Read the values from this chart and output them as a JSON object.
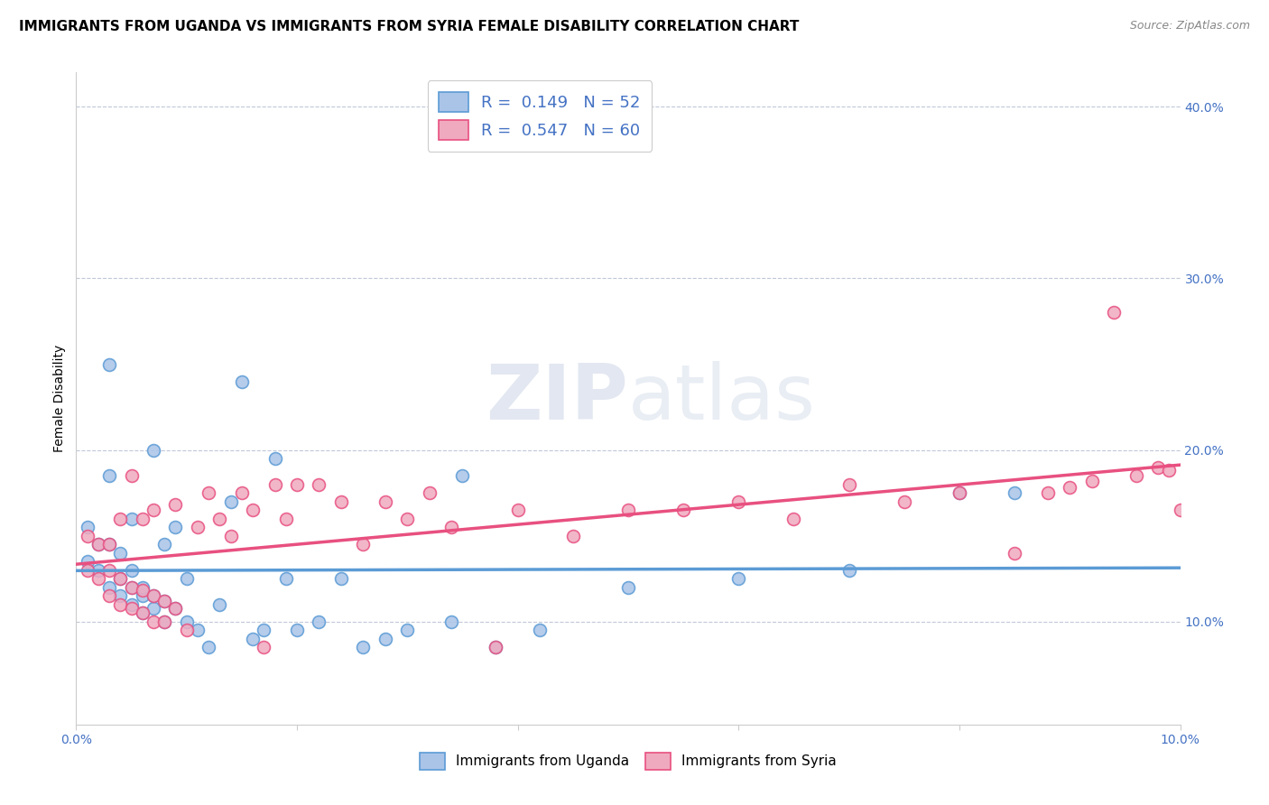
{
  "title": "IMMIGRANTS FROM UGANDA VS IMMIGRANTS FROM SYRIA FEMALE DISABILITY CORRELATION CHART",
  "source": "Source: ZipAtlas.com",
  "ylabel": "Female Disability",
  "xlim": [
    0.0,
    0.1
  ],
  "ylim": [
    0.04,
    0.42
  ],
  "yticks": [
    0.1,
    0.2,
    0.3,
    0.4
  ],
  "ytick_labels": [
    "10.0%",
    "20.0%",
    "30.0%",
    "40.0%"
  ],
  "xticks": [
    0.0,
    0.02,
    0.04,
    0.06,
    0.08,
    0.1
  ],
  "xtick_labels": [
    "0.0%",
    "",
    "",
    "",
    "",
    "10.0%"
  ],
  "legend_R1": "R =  0.149",
  "legend_N1": "N = 52",
  "legend_R2": "R =  0.547",
  "legend_N2": "N = 60",
  "color_uganda": "#aac4e8",
  "color_syria": "#f0aac0",
  "color_line_uganda": "#5b9bd5",
  "color_line_syria": "#e85080",
  "uganda_x": [
    0.001,
    0.001,
    0.002,
    0.002,
    0.003,
    0.003,
    0.003,
    0.003,
    0.004,
    0.004,
    0.004,
    0.005,
    0.005,
    0.005,
    0.005,
    0.006,
    0.006,
    0.006,
    0.007,
    0.007,
    0.007,
    0.008,
    0.008,
    0.008,
    0.009,
    0.009,
    0.01,
    0.01,
    0.011,
    0.012,
    0.013,
    0.014,
    0.015,
    0.016,
    0.017,
    0.018,
    0.019,
    0.02,
    0.022,
    0.024,
    0.026,
    0.028,
    0.03,
    0.034,
    0.035,
    0.038,
    0.042,
    0.05,
    0.06,
    0.07,
    0.08,
    0.085
  ],
  "uganda_y": [
    0.135,
    0.155,
    0.13,
    0.145,
    0.12,
    0.145,
    0.185,
    0.25,
    0.115,
    0.125,
    0.14,
    0.11,
    0.12,
    0.13,
    0.16,
    0.105,
    0.115,
    0.12,
    0.108,
    0.115,
    0.2,
    0.1,
    0.112,
    0.145,
    0.108,
    0.155,
    0.1,
    0.125,
    0.095,
    0.085,
    0.11,
    0.17,
    0.24,
    0.09,
    0.095,
    0.195,
    0.125,
    0.095,
    0.1,
    0.125,
    0.085,
    0.09,
    0.095,
    0.1,
    0.185,
    0.085,
    0.095,
    0.12,
    0.125,
    0.13,
    0.175,
    0.175
  ],
  "syria_x": [
    0.001,
    0.001,
    0.002,
    0.002,
    0.003,
    0.003,
    0.003,
    0.004,
    0.004,
    0.004,
    0.005,
    0.005,
    0.005,
    0.006,
    0.006,
    0.006,
    0.007,
    0.007,
    0.007,
    0.008,
    0.008,
    0.009,
    0.009,
    0.01,
    0.011,
    0.012,
    0.013,
    0.014,
    0.015,
    0.016,
    0.017,
    0.018,
    0.019,
    0.02,
    0.022,
    0.024,
    0.026,
    0.028,
    0.03,
    0.032,
    0.034,
    0.038,
    0.04,
    0.045,
    0.05,
    0.055,
    0.06,
    0.065,
    0.07,
    0.075,
    0.08,
    0.085,
    0.088,
    0.09,
    0.092,
    0.094,
    0.096,
    0.098,
    0.099,
    0.1
  ],
  "syria_y": [
    0.13,
    0.15,
    0.125,
    0.145,
    0.115,
    0.13,
    0.145,
    0.11,
    0.125,
    0.16,
    0.108,
    0.12,
    0.185,
    0.105,
    0.118,
    0.16,
    0.1,
    0.115,
    0.165,
    0.1,
    0.112,
    0.108,
    0.168,
    0.095,
    0.155,
    0.175,
    0.16,
    0.15,
    0.175,
    0.165,
    0.085,
    0.18,
    0.16,
    0.18,
    0.18,
    0.17,
    0.145,
    0.17,
    0.16,
    0.175,
    0.155,
    0.085,
    0.165,
    0.15,
    0.165,
    0.165,
    0.17,
    0.16,
    0.18,
    0.17,
    0.175,
    0.14,
    0.175,
    0.178,
    0.182,
    0.28,
    0.185,
    0.19,
    0.188,
    0.165
  ],
  "title_fontsize": 11,
  "axis_fontsize": 10,
  "tick_fontsize": 10,
  "marker_size": 100
}
